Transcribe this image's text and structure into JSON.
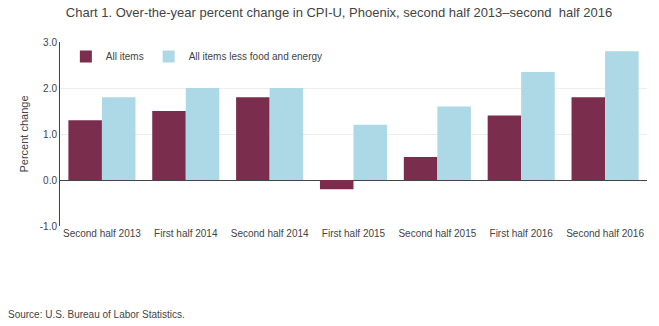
{
  "chart_data": {
    "type": "bar",
    "title": "Chart 1. Over-the-year percent change in CPI-U, Phoenix, second half 2013–second  half 2016",
    "ylabel": "Percent change",
    "annotations": [
      "Source: U.S. Bureau of Labor Statistics."
    ],
    "categories": [
      "Second half 2013",
      "First half 2014",
      "Second half 2014",
      "First half 2015",
      "Second half 2015",
      "First half 2016",
      "Second half 2016"
    ],
    "series": [
      {
        "name": "All items",
        "color": "#7B2D4E",
        "values": [
          1.3,
          1.5,
          1.8,
          -0.2,
          0.5,
          1.4,
          1.8
        ]
      },
      {
        "name": "All items less food and energy",
        "color": "#ADD8E6",
        "values": [
          1.8,
          2.0,
          2.0,
          1.2,
          1.6,
          2.35,
          2.8
        ]
      }
    ],
    "ylim": [
      -1.0,
      3.0
    ],
    "yticks": [
      {
        "value": -1.0,
        "label": "-1.0"
      },
      {
        "value": 0.0,
        "label": "0.0"
      },
      {
        "value": 1.0,
        "label": "1.0"
      },
      {
        "value": 2.0,
        "label": "2.0"
      },
      {
        "value": 3.0,
        "label": "3.0"
      }
    ],
    "grid": true,
    "legend": "upper left"
  }
}
